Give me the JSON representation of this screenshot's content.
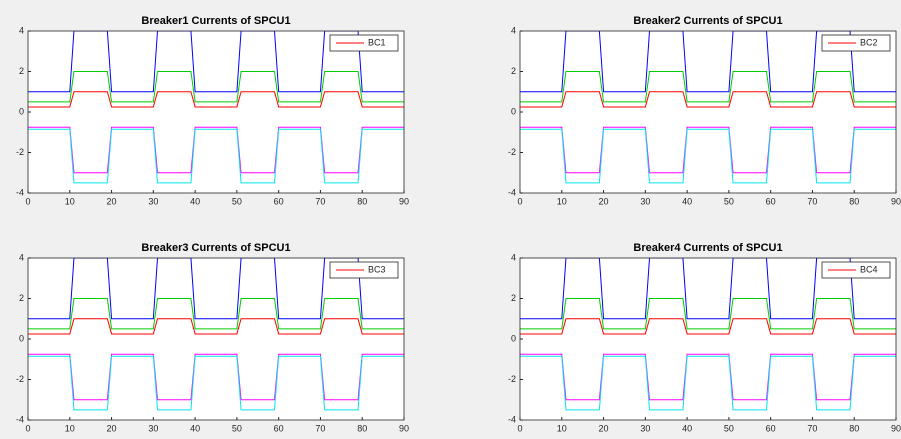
{
  "chart_data": [
    {
      "type": "line",
      "title": "Breaker1 Currents of SPCU1",
      "x": [
        0,
        10,
        11,
        19,
        20,
        30,
        31,
        39,
        40,
        50,
        51,
        59,
        60,
        70,
        71,
        79,
        80,
        90
      ],
      "series": [
        {
          "color": "#0000ff",
          "values": [
            1,
            1,
            4,
            4,
            1,
            1,
            4,
            4,
            1,
            1,
            4,
            4,
            1,
            1,
            4,
            4,
            1,
            1
          ]
        },
        {
          "color": "#00cc00",
          "values": [
            0.5,
            0.5,
            2,
            2,
            0.5,
            0.5,
            2,
            2,
            0.5,
            0.5,
            2,
            2,
            0.5,
            0.5,
            2,
            2,
            0.5,
            0.5
          ]
        },
        {
          "name": "BC1",
          "color": "#ff0000",
          "values": [
            0.25,
            0.25,
            1,
            1,
            0.25,
            0.25,
            1,
            1,
            0.25,
            0.25,
            1,
            1,
            0.25,
            0.25,
            1,
            1,
            0.25,
            0.25
          ]
        },
        {
          "color": "#ff00ff",
          "values": [
            -0.75,
            -0.75,
            -3,
            -3,
            -0.75,
            -0.75,
            -3,
            -3,
            -0.75,
            -0.75,
            -3,
            -3,
            -0.75,
            -0.75,
            -3,
            -3,
            -0.75,
            -0.75
          ]
        },
        {
          "color": "#00e5ee",
          "values": [
            -0.85,
            -0.85,
            -3.5,
            -3.5,
            -0.85,
            -0.85,
            -3.5,
            -3.5,
            -0.85,
            -0.85,
            -3.5,
            -3.5,
            -0.85,
            -0.85,
            -3.5,
            -3.5,
            -0.85,
            -0.85
          ]
        }
      ],
      "xlim": [
        0,
        90
      ],
      "ylim": [
        -4,
        4
      ],
      "xticks": [
        0,
        10,
        20,
        30,
        40,
        50,
        60,
        70,
        80,
        90
      ],
      "yticks": [
        -4,
        -2,
        0,
        2,
        4
      ],
      "legend": "upper right"
    },
    {
      "type": "line",
      "title": "Breaker2 Currents of SPCU1",
      "x": [
        0,
        10,
        11,
        19,
        20,
        30,
        31,
        39,
        40,
        50,
        51,
        59,
        60,
        70,
        71,
        79,
        80,
        90
      ],
      "series": [
        {
          "color": "#0000ff",
          "values": [
            1,
            1,
            4,
            4,
            1,
            1,
            4,
            4,
            1,
            1,
            4,
            4,
            1,
            1,
            4,
            4,
            1,
            1
          ]
        },
        {
          "color": "#00cc00",
          "values": [
            0.5,
            0.5,
            2,
            2,
            0.5,
            0.5,
            2,
            2,
            0.5,
            0.5,
            2,
            2,
            0.5,
            0.5,
            2,
            2,
            0.5,
            0.5
          ]
        },
        {
          "name": "BC2",
          "color": "#ff0000",
          "values": [
            0.25,
            0.25,
            1,
            1,
            0.25,
            0.25,
            1,
            1,
            0.25,
            0.25,
            1,
            1,
            0.25,
            0.25,
            1,
            1,
            0.25,
            0.25
          ]
        },
        {
          "color": "#ff00ff",
          "values": [
            -0.75,
            -0.75,
            -3,
            -3,
            -0.75,
            -0.75,
            -3,
            -3,
            -0.75,
            -0.75,
            -3,
            -3,
            -0.75,
            -0.75,
            -3,
            -3,
            -0.75,
            -0.75
          ]
        },
        {
          "color": "#00e5ee",
          "values": [
            -0.85,
            -0.85,
            -3.5,
            -3.5,
            -0.85,
            -0.85,
            -3.5,
            -3.5,
            -0.85,
            -0.85,
            -3.5,
            -3.5,
            -0.85,
            -0.85,
            -3.5,
            -3.5,
            -0.85,
            -0.85
          ]
        }
      ],
      "xlim": [
        0,
        90
      ],
      "ylim": [
        -4,
        4
      ],
      "xticks": [
        0,
        10,
        20,
        30,
        40,
        50,
        60,
        70,
        80,
        90
      ],
      "yticks": [
        -4,
        -2,
        0,
        2,
        4
      ],
      "legend": "upper right"
    },
    {
      "type": "line",
      "title": "Breaker3 Currents of SPCU1",
      "x": [
        0,
        10,
        11,
        19,
        20,
        30,
        31,
        39,
        40,
        50,
        51,
        59,
        60,
        70,
        71,
        79,
        80,
        90
      ],
      "series": [
        {
          "color": "#0000ff",
          "values": [
            1,
            1,
            4,
            4,
            1,
            1,
            4,
            4,
            1,
            1,
            4,
            4,
            1,
            1,
            4,
            4,
            1,
            1
          ]
        },
        {
          "color": "#00cc00",
          "values": [
            0.5,
            0.5,
            2,
            2,
            0.5,
            0.5,
            2,
            2,
            0.5,
            0.5,
            2,
            2,
            0.5,
            0.5,
            2,
            2,
            0.5,
            0.5
          ]
        },
        {
          "name": "BC3",
          "color": "#ff0000",
          "values": [
            0.25,
            0.25,
            1,
            1,
            0.25,
            0.25,
            1,
            1,
            0.25,
            0.25,
            1,
            1,
            0.25,
            0.25,
            1,
            1,
            0.25,
            0.25
          ]
        },
        {
          "color": "#ff00ff",
          "values": [
            -0.75,
            -0.75,
            -3,
            -3,
            -0.75,
            -0.75,
            -3,
            -3,
            -0.75,
            -0.75,
            -3,
            -3,
            -0.75,
            -0.75,
            -3,
            -3,
            -0.75,
            -0.75
          ]
        },
        {
          "color": "#00e5ee",
          "values": [
            -0.85,
            -0.85,
            -3.5,
            -3.5,
            -0.85,
            -0.85,
            -3.5,
            -3.5,
            -0.85,
            -0.85,
            -3.5,
            -3.5,
            -0.85,
            -0.85,
            -3.5,
            -3.5,
            -0.85,
            -0.85
          ]
        }
      ],
      "xlim": [
        0,
        90
      ],
      "ylim": [
        -4,
        4
      ],
      "xticks": [
        0,
        10,
        20,
        30,
        40,
        50,
        60,
        70,
        80,
        90
      ],
      "yticks": [
        -4,
        -2,
        0,
        2,
        4
      ],
      "legend": "upper right"
    },
    {
      "type": "line",
      "title": "Breaker4 Currents of SPCU1",
      "x": [
        0,
        10,
        11,
        19,
        20,
        30,
        31,
        39,
        40,
        50,
        51,
        59,
        60,
        70,
        71,
        79,
        80,
        90
      ],
      "series": [
        {
          "color": "#0000ff",
          "values": [
            1,
            1,
            4,
            4,
            1,
            1,
            4,
            4,
            1,
            1,
            4,
            4,
            1,
            1,
            4,
            4,
            1,
            1
          ]
        },
        {
          "color": "#00cc00",
          "values": [
            0.5,
            0.5,
            2,
            2,
            0.5,
            0.5,
            2,
            2,
            0.5,
            0.5,
            2,
            2,
            0.5,
            0.5,
            2,
            2,
            0.5,
            0.5
          ]
        },
        {
          "name": "BC4",
          "color": "#ff0000",
          "values": [
            0.25,
            0.25,
            1,
            1,
            0.25,
            0.25,
            1,
            1,
            0.25,
            0.25,
            1,
            1,
            0.25,
            0.25,
            1,
            1,
            0.25,
            0.25
          ]
        },
        {
          "color": "#ff00ff",
          "values": [
            -0.75,
            -0.75,
            -3,
            -3,
            -0.75,
            -0.75,
            -3,
            -3,
            -0.75,
            -0.75,
            -3,
            -3,
            -0.75,
            -0.75,
            -3,
            -3,
            -0.75,
            -0.75
          ]
        },
        {
          "color": "#00e5ee",
          "values": [
            -0.85,
            -0.85,
            -3.5,
            -3.5,
            -0.85,
            -0.85,
            -3.5,
            -3.5,
            -0.85,
            -0.85,
            -3.5,
            -3.5,
            -0.85,
            -0.85,
            -3.5,
            -3.5,
            -0.85,
            -0.85
          ]
        }
      ],
      "xlim": [
        0,
        90
      ],
      "ylim": [
        -4,
        4
      ],
      "xticks": [
        0,
        10,
        20,
        30,
        40,
        50,
        60,
        70,
        80,
        90
      ],
      "yticks": [
        -4,
        -2,
        0,
        2,
        4
      ],
      "legend": "upper right"
    }
  ]
}
